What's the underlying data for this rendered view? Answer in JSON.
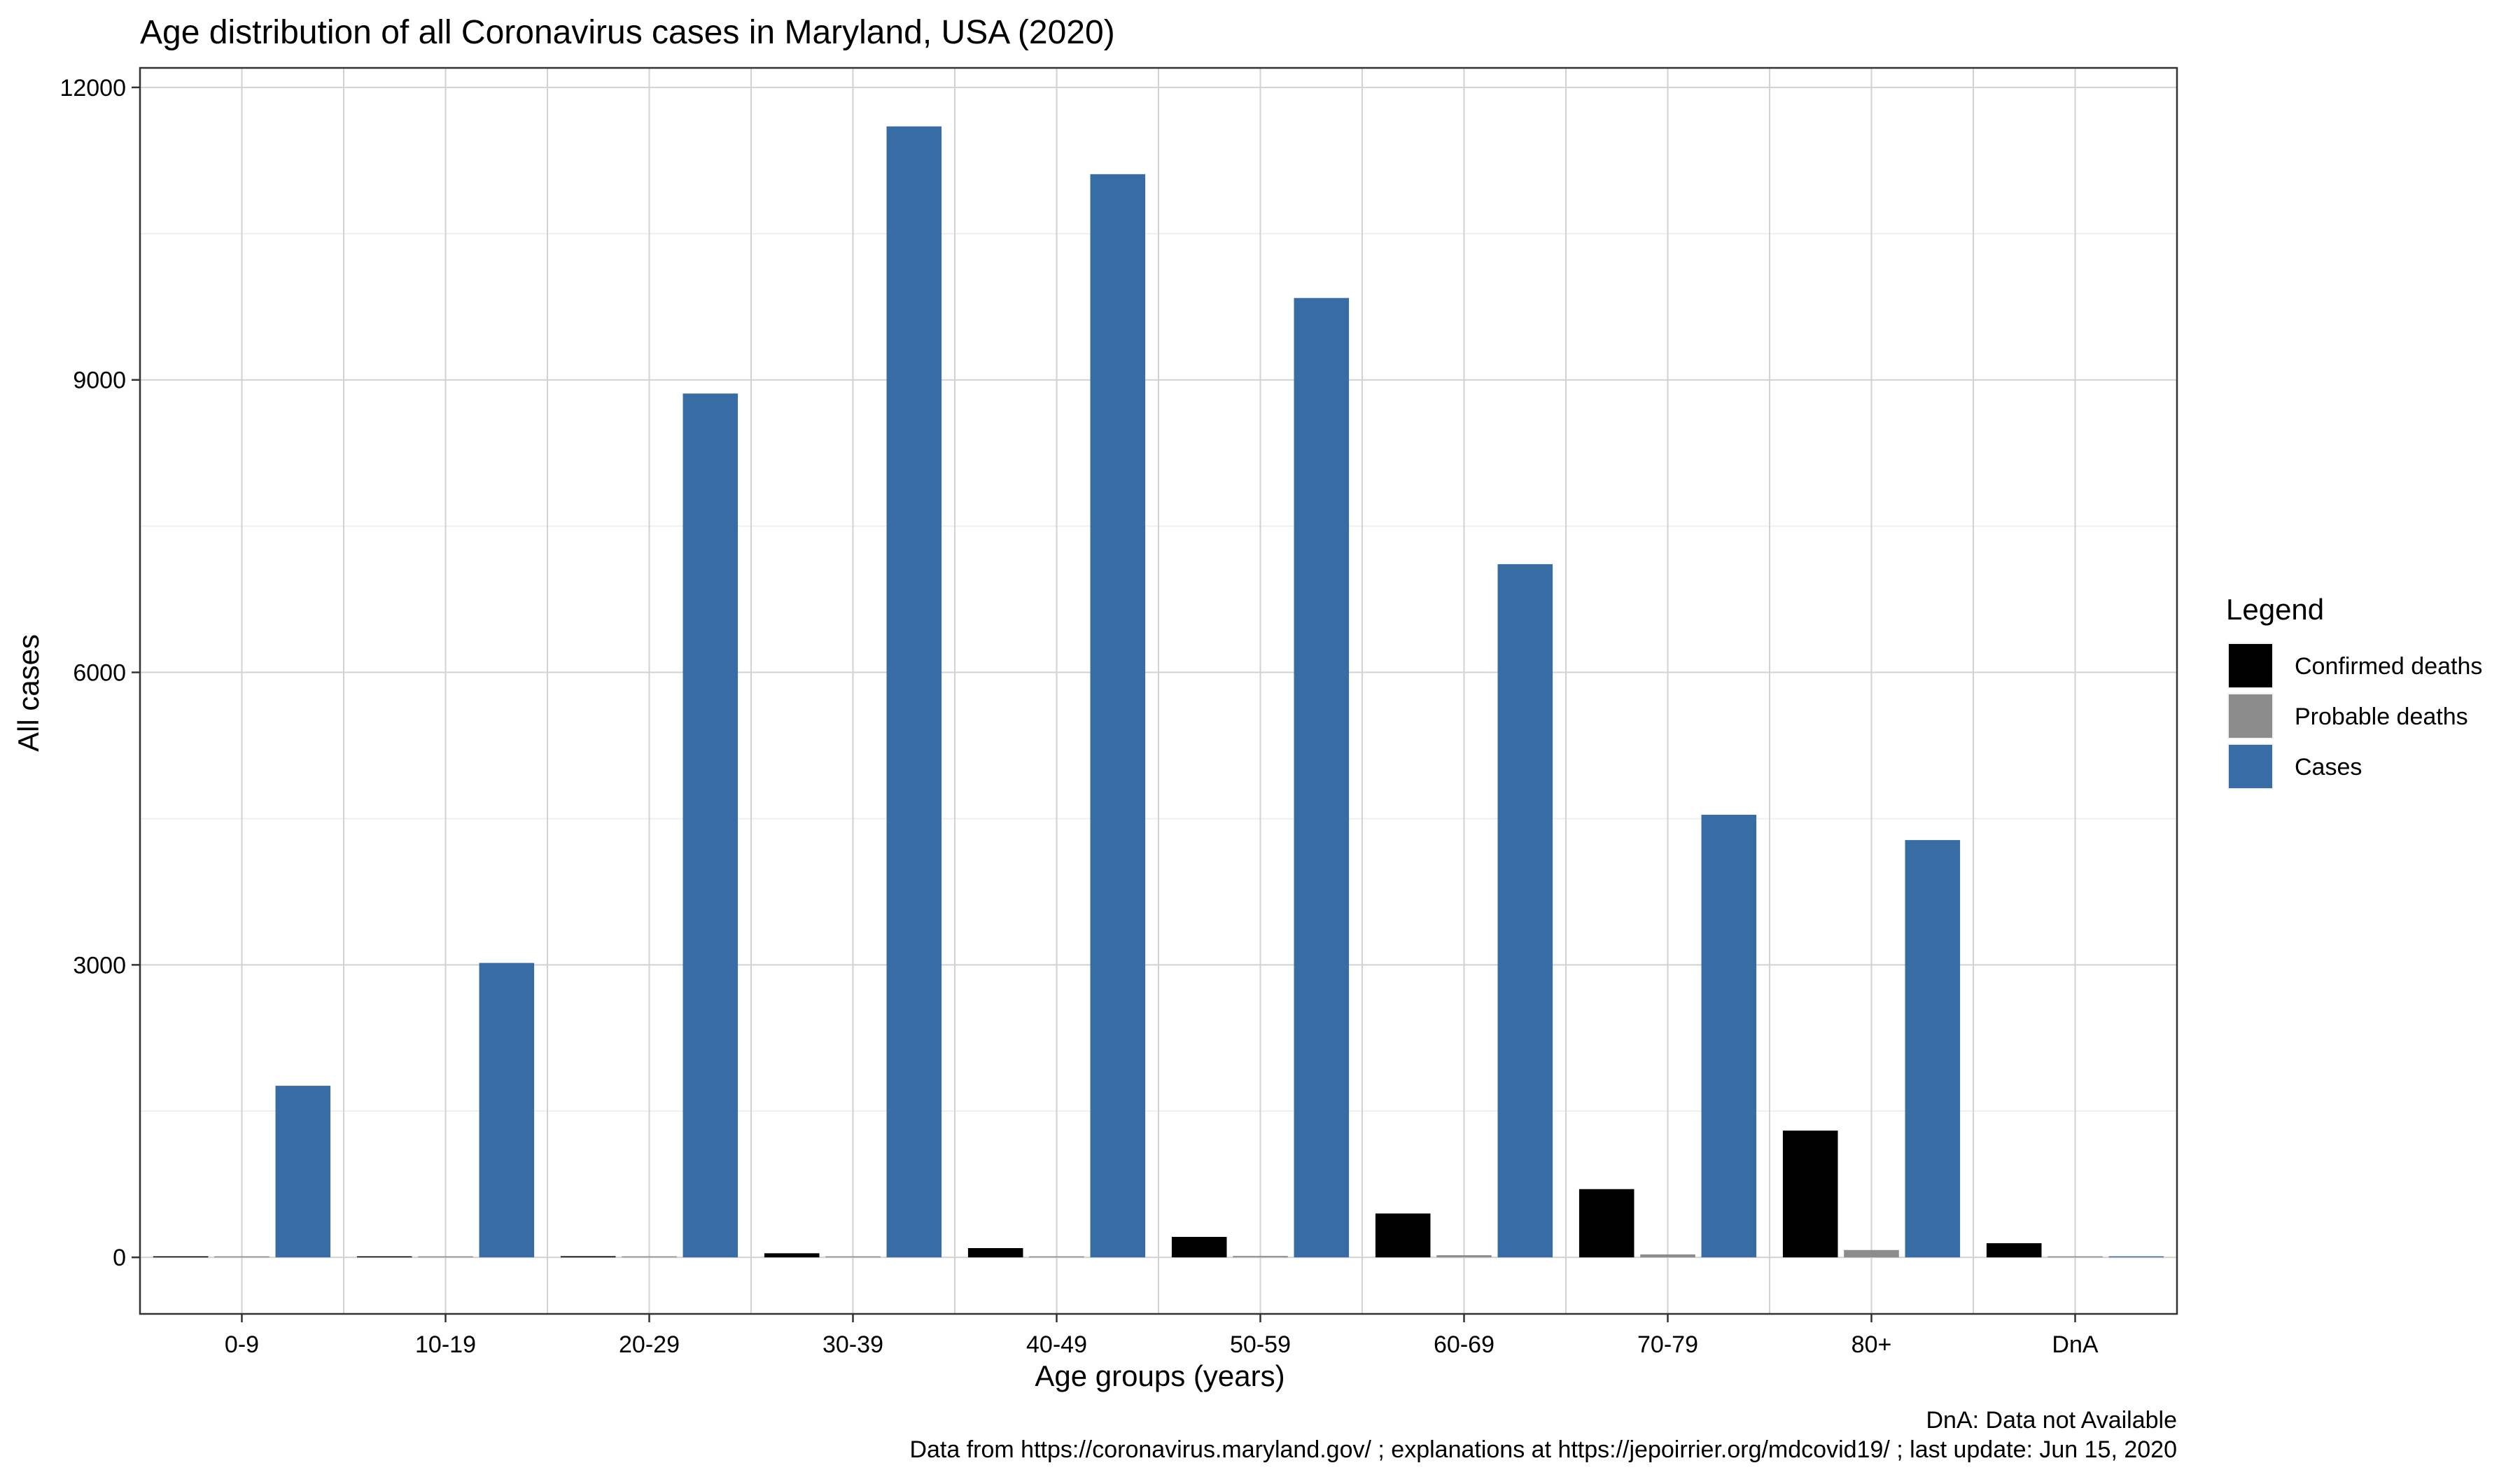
{
  "chart_data": {
    "type": "bar",
    "title": "Age distribution of all Coronavirus cases in Maryland, USA (2020)",
    "xlabel": "Age groups (years)",
    "ylabel": "All cases",
    "categories": [
      "0-9",
      "10-19",
      "20-29",
      "30-39",
      "40-49",
      "50-59",
      "60-69",
      "70-79",
      "80+",
      "DnA"
    ],
    "ylim": [
      -580,
      12200
    ],
    "yticks": [
      0,
      3000,
      6000,
      9000,
      12000
    ],
    "grid": true,
    "legend": {
      "title": "Legend",
      "placement": "right"
    },
    "series": [
      {
        "name": "Confirmed deaths",
        "color": "#000000",
        "values": [
          0,
          2,
          12,
          42,
          95,
          210,
          450,
          700,
          1300,
          145
        ]
      },
      {
        "name": "Probable deaths",
        "color": "#8c8c8c",
        "values": [
          0,
          0,
          1,
          2,
          6,
          14,
          22,
          30,
          75,
          0
        ]
      },
      {
        "name": "Cases",
        "color": "#386ca4",
        "values": [
          1760,
          3020,
          8860,
          11600,
          11110,
          9840,
          7110,
          4540,
          4280,
          0
        ]
      }
    ],
    "captions": [
      "DnA: Data not Available",
      "Data from https://coronavirus.maryland.gov/ ; explanations at https://jepoirrier.org/mdcovid19/ ; last update: Jun 15, 2020"
    ]
  }
}
